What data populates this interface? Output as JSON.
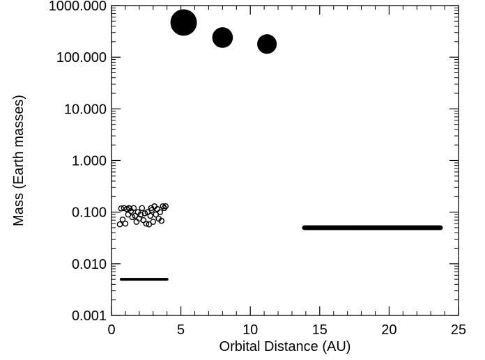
{
  "chart_data": {
    "type": "scatter",
    "title": "",
    "xlabel": "Orbital Distance (AU)",
    "ylabel": "Mass (Earth masses)",
    "xlim": [
      0,
      25
    ],
    "ylim": [
      0.001,
      1000
    ],
    "y_scale": "log",
    "grid": false,
    "x_ticks": [
      0,
      5,
      10,
      15,
      20,
      25
    ],
    "x_tick_labels": [
      "0",
      "5",
      "10",
      "15",
      "20",
      "25"
    ],
    "y_ticks": [
      0.001,
      0.01,
      0.1,
      1,
      10,
      100,
      1000
    ],
    "y_tick_labels": [
      "0.001",
      "0.010",
      "0.100",
      "1.000",
      "10.000",
      "100.000",
      "1000.000"
    ],
    "series": [
      {
        "marker": "filled-circle-large",
        "color": "#000000",
        "points": [
          [
            5.2,
            470
          ],
          [
            8.0,
            240
          ],
          [
            11.2,
            180
          ]
        ],
        "relative_sizes": [
          1.0,
          0.78,
          0.74
        ]
      },
      {
        "marker": "open-circle",
        "color": "#000000",
        "points": [
          [
            0.6,
            0.058
          ],
          [
            0.7,
            0.118
          ],
          [
            0.8,
            0.072
          ],
          [
            0.9,
            0.12
          ],
          [
            1.0,
            0.06
          ],
          [
            1.1,
            0.115
          ],
          [
            1.2,
            0.09
          ],
          [
            1.3,
            0.118
          ],
          [
            1.4,
            0.105
          ],
          [
            1.5,
            0.08
          ],
          [
            1.6,
            0.12
          ],
          [
            1.7,
            0.085
          ],
          [
            1.8,
            0.065
          ],
          [
            1.9,
            0.1
          ],
          [
            2.0,
            0.075
          ],
          [
            2.1,
            0.09
          ],
          [
            2.2,
            0.12
          ],
          [
            2.3,
            0.07
          ],
          [
            2.4,
            0.095
          ],
          [
            2.5,
            0.06
          ],
          [
            2.6,
            0.1
          ],
          [
            2.7,
            0.058
          ],
          [
            2.8,
            0.085
          ],
          [
            2.9,
            0.11
          ],
          [
            3.0,
            0.065
          ],
          [
            3.1,
            0.13
          ],
          [
            3.2,
            0.09
          ],
          [
            3.3,
            0.115
          ],
          [
            3.4,
            0.075
          ],
          [
            3.5,
            0.1
          ],
          [
            3.6,
            0.068
          ],
          [
            3.7,
            0.13
          ],
          [
            3.8,
            0.12
          ],
          [
            3.9,
            0.13
          ],
          [
            1.25,
            0.12
          ],
          [
            2.85,
            0.12
          ]
        ]
      },
      {
        "marker": "small-dot",
        "color": "#000000",
        "x_range": [
          0.7,
          4.0
        ],
        "count": 60,
        "value": 0.005
      },
      {
        "marker": "filled-dot",
        "color": "#000000",
        "x_range": [
          13.9,
          23.7
        ],
        "count": 170,
        "value": 0.05
      }
    ]
  }
}
